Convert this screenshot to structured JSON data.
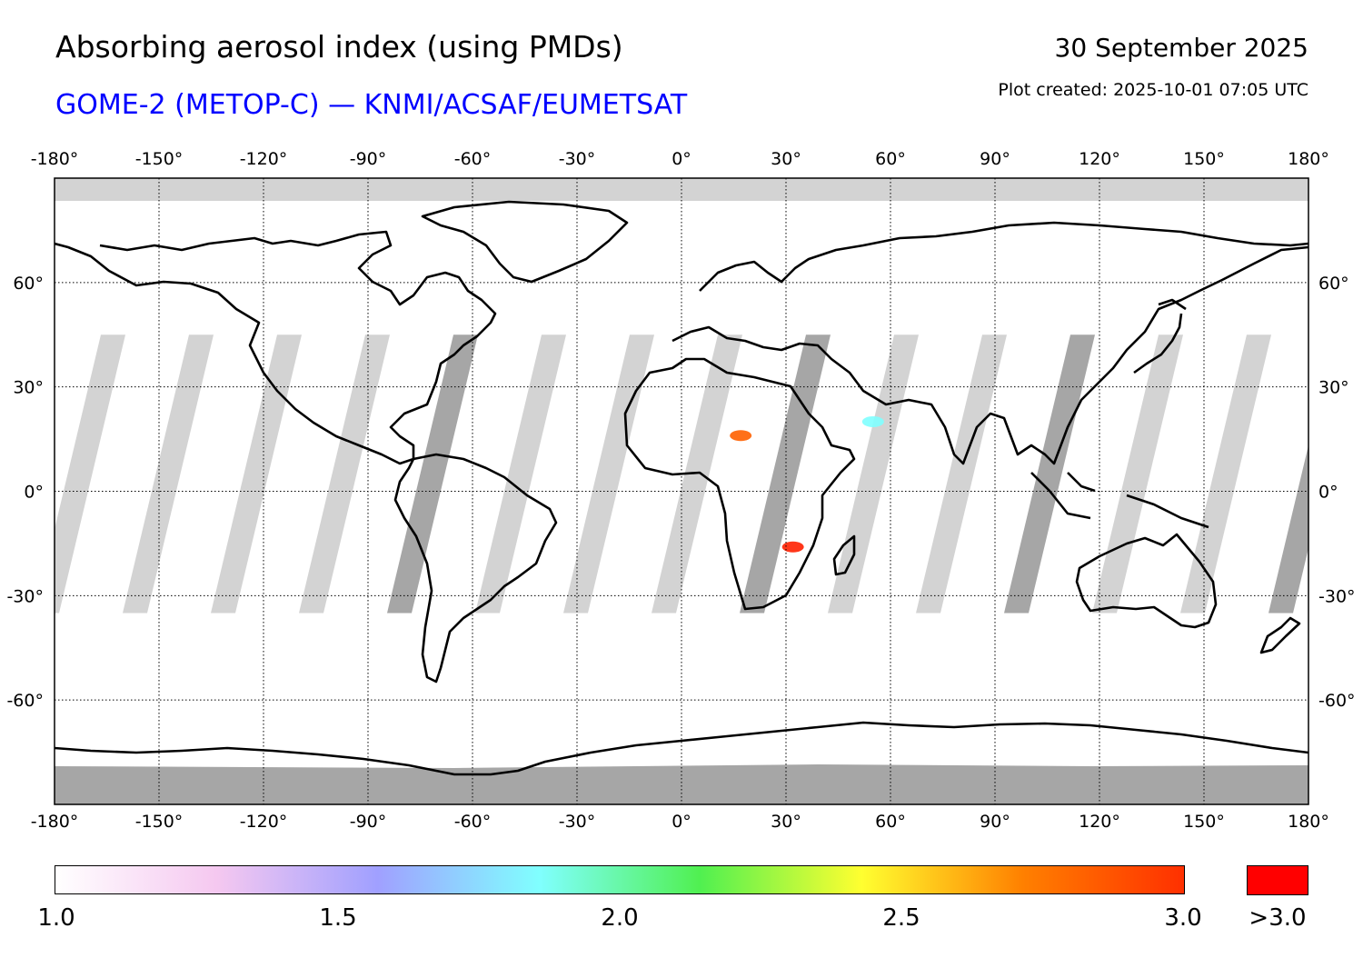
{
  "header": {
    "title": "Absorbing aerosol index (using PMDs)",
    "subtitle": "GOME-2 (METOP-C) — KNMI/ACSAF/EUMETSAT",
    "date": "30 September 2025",
    "plot_created": "Plot created: 2025-10-01 07:05 UTC"
  },
  "map": {
    "projection": "equirectangular",
    "lon_range": [
      -180,
      180
    ],
    "lat_range": [
      -90,
      90
    ],
    "lon_ticks": [
      "-180°",
      "-150°",
      "-120°",
      "-90°",
      "-60°",
      "-30°",
      "0°",
      "30°",
      "60°",
      "90°",
      "120°",
      "150°",
      "180°"
    ],
    "lat_ticks": [
      "60°",
      "30°",
      "0°",
      "-30°",
      "-60°"
    ],
    "colors": {
      "no_data": "#d3d3d3",
      "polar_no_data": "#a6a6a6",
      "coastline": "#000000",
      "gridline": "#000000"
    },
    "hotspots": [
      {
        "region": "Southern Africa",
        "lon": 32,
        "lat": -16,
        "level": ">3.0"
      },
      {
        "region": "Sahara",
        "lon": 17,
        "lat": 16,
        "level": "3.0"
      },
      {
        "region": "Arabian Peninsula",
        "lon": 55,
        "lat": 20,
        "level": "2.0"
      }
    ]
  },
  "colorbar": {
    "min": 1.0,
    "max": 3.0,
    "labels": [
      "1.0",
      "1.5",
      "2.0",
      "2.5",
      "3.0"
    ],
    "overflow_label": ">3.0",
    "overflow_color": "#ff0000",
    "stops": [
      "#ffffff",
      "#f5c8f0",
      "#a0a0ff",
      "#80ffff",
      "#50f050",
      "#ffff30",
      "#ff8000",
      "#ff3000"
    ]
  }
}
